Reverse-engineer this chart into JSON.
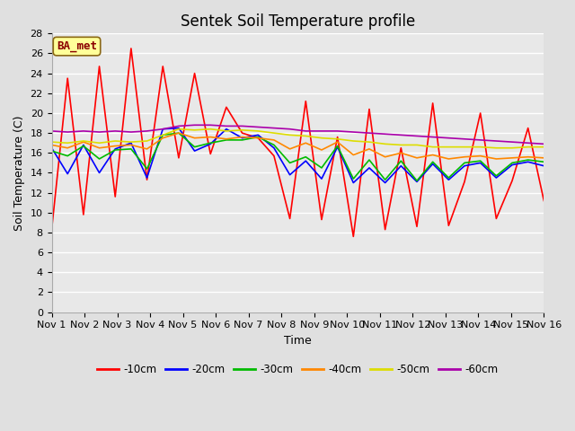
{
  "title": "Sentek Soil Temperature profile",
  "xlabel": "Time",
  "ylabel": "Soil Temperature (C)",
  "annotation": "BA_met",
  "ylim": [
    0,
    28
  ],
  "yticks": [
    0,
    2,
    4,
    6,
    8,
    10,
    12,
    14,
    16,
    18,
    20,
    22,
    24,
    26,
    28
  ],
  "x_labels": [
    "Nov 1",
    "Nov 2",
    "Nov 3",
    "Nov 4",
    "Nov 5",
    "Nov 6",
    "Nov 7",
    "Nov 8",
    "Nov 9",
    "Nov 10",
    "Nov 11",
    "Nov 12",
    "Nov 13",
    "Nov 14",
    "Nov 15",
    "Nov 16"
  ],
  "series": {
    "-10cm": {
      "color": "#ff0000",
      "lw": 1.2,
      "data": [
        8.3,
        23.5,
        9.8,
        24.7,
        11.6,
        26.5,
        13.3,
        24.7,
        15.5,
        24.0,
        15.9,
        20.6,
        18.0,
        17.5,
        15.7,
        9.4,
        21.2,
        9.3,
        17.6,
        7.6,
        20.4,
        8.3,
        16.5,
        8.6,
        21.0,
        8.7,
        13.1,
        20.0,
        9.4,
        13.2,
        18.5,
        11.2
      ]
    },
    "-20cm": {
      "color": "#0000ff",
      "lw": 1.2,
      "data": [
        16.5,
        13.9,
        16.8,
        14.0,
        16.4,
        17.0,
        13.5,
        18.4,
        18.5,
        16.2,
        16.9,
        18.4,
        17.5,
        17.8,
        16.5,
        13.8,
        15.2,
        13.4,
        16.6,
        13.0,
        14.5,
        13.0,
        14.7,
        13.1,
        14.9,
        13.3,
        14.7,
        15.0,
        13.5,
        14.8,
        15.1,
        14.7
      ]
    },
    "-30cm": {
      "color": "#00bb00",
      "lw": 1.2,
      "data": [
        16.2,
        15.7,
        16.7,
        15.4,
        16.3,
        16.4,
        14.4,
        17.8,
        18.0,
        16.6,
        17.0,
        17.3,
        17.3,
        17.6,
        16.8,
        15.0,
        15.6,
        14.5,
        16.7,
        13.4,
        15.3,
        13.3,
        15.2,
        13.2,
        15.1,
        13.5,
        15.0,
        15.2,
        13.7,
        15.0,
        15.3,
        15.1
      ]
    },
    "-40cm": {
      "color": "#ff8800",
      "lw": 1.2,
      "data": [
        16.8,
        16.5,
        17.1,
        16.5,
        16.7,
        16.8,
        16.4,
        17.5,
        18.0,
        17.5,
        17.6,
        17.4,
        17.6,
        17.5,
        17.3,
        16.4,
        17.0,
        16.3,
        17.1,
        15.8,
        16.4,
        15.6,
        16.0,
        15.5,
        15.8,
        15.4,
        15.6,
        15.7,
        15.4,
        15.5,
        15.6,
        15.5
      ]
    },
    "-50cm": {
      "color": "#dddd00",
      "lw": 1.2,
      "data": [
        17.1,
        17.0,
        17.2,
        17.0,
        17.2,
        17.1,
        17.2,
        17.8,
        18.4,
        18.3,
        18.4,
        18.2,
        18.3,
        18.2,
        18.0,
        17.8,
        17.7,
        17.5,
        17.4,
        17.2,
        17.1,
        16.9,
        16.8,
        16.8,
        16.6,
        16.6,
        16.6,
        16.6,
        16.5,
        16.5,
        16.6,
        16.6
      ]
    },
    "-60cm": {
      "color": "#aa00aa",
      "lw": 1.2,
      "data": [
        18.2,
        18.1,
        18.2,
        18.1,
        18.2,
        18.1,
        18.2,
        18.4,
        18.7,
        18.8,
        18.8,
        18.7,
        18.7,
        18.6,
        18.5,
        18.4,
        18.2,
        18.2,
        18.2,
        18.1,
        18.0,
        17.9,
        17.8,
        17.7,
        17.6,
        17.5,
        17.4,
        17.3,
        17.2,
        17.1,
        17.0,
        16.9
      ]
    }
  },
  "bg_color": "#e0e0e0",
  "plot_bg_color": "#e8e8e8",
  "title_fontsize": 12,
  "axis_label_fontsize": 9,
  "tick_fontsize": 8
}
